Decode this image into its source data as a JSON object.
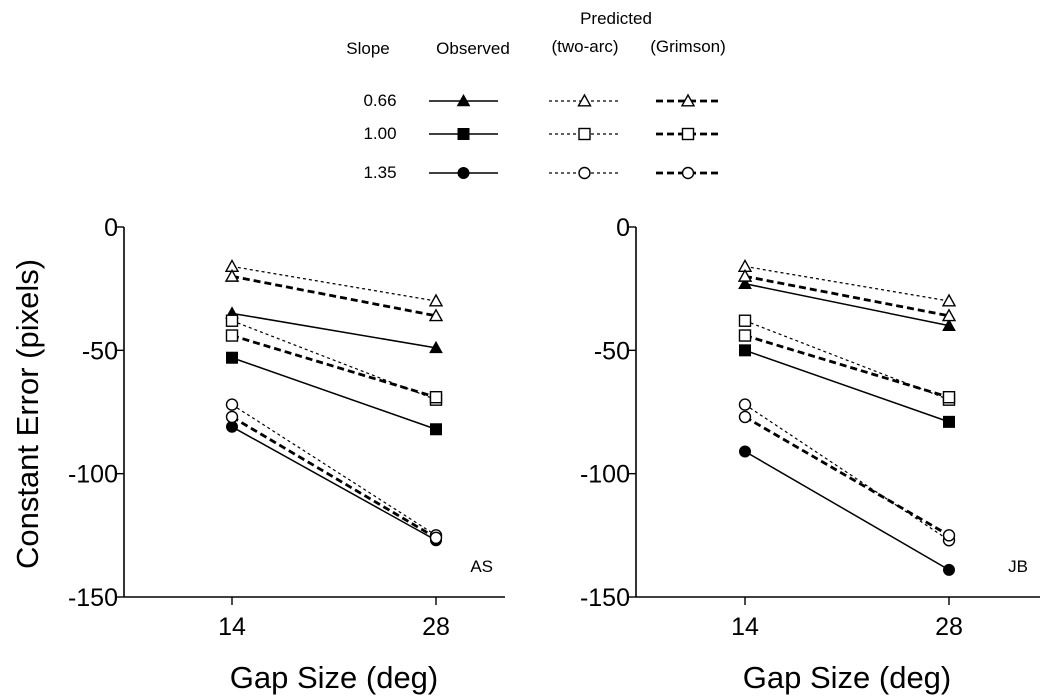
{
  "legend": {
    "headers": {
      "slope": "Slope",
      "observed": "Observed",
      "predicted": "Predicted",
      "two_arc": "(two-arc)",
      "grimson": "(Grimson)"
    },
    "rows": [
      {
        "slope": "0.66",
        "marker": "triangle"
      },
      {
        "slope": "1.00",
        "marker": "square"
      },
      {
        "slope": "1.35",
        "marker": "circle"
      }
    ]
  },
  "chart_data": [
    {
      "type": "line",
      "panel_label": "AS",
      "x": [
        14,
        28
      ],
      "x_tick_labels": [
        "14",
        "28"
      ],
      "y_ticks": [
        0,
        -50,
        -100,
        -150
      ],
      "y_tick_labels": [
        "0",
        "-50",
        "-100",
        "-150"
      ],
      "xlabel": "Gap Size (deg)",
      "ylabel": "Constant Error (pixels)",
      "ylim": [
        -150,
        0
      ],
      "series": [
        {
          "name": "0.66 Observed",
          "slope": "0.66",
          "kind": "observed",
          "marker": "triangle",
          "values": [
            -35,
            -49
          ]
        },
        {
          "name": "0.66 Predicted (two-arc)",
          "slope": "0.66",
          "kind": "two-arc",
          "marker": "triangle",
          "values": [
            -16,
            -30
          ]
        },
        {
          "name": "0.66 Predicted (Grimson)",
          "slope": "0.66",
          "kind": "grimson",
          "marker": "triangle",
          "values": [
            -20,
            -36
          ]
        },
        {
          "name": "1.00 Observed",
          "slope": "1.00",
          "kind": "observed",
          "marker": "square",
          "values": [
            -53,
            -82
          ]
        },
        {
          "name": "1.00 Predicted (two-arc)",
          "slope": "1.00",
          "kind": "two-arc",
          "marker": "square",
          "values": [
            -38,
            -70
          ]
        },
        {
          "name": "1.00 Predicted (Grimson)",
          "slope": "1.00",
          "kind": "grimson",
          "marker": "square",
          "values": [
            -44,
            -69
          ]
        },
        {
          "name": "1.35 Observed",
          "slope": "1.35",
          "kind": "observed",
          "marker": "circle",
          "values": [
            -81,
            -127
          ]
        },
        {
          "name": "1.35 Predicted (two-arc)",
          "slope": "1.35",
          "kind": "two-arc",
          "marker": "circle",
          "values": [
            -72,
            -125
          ]
        },
        {
          "name": "1.35 Predicted (Grimson)",
          "slope": "1.35",
          "kind": "grimson",
          "marker": "circle",
          "values": [
            -77,
            -126
          ]
        }
      ]
    },
    {
      "type": "line",
      "panel_label": "JB",
      "x": [
        14,
        28
      ],
      "x_tick_labels": [
        "14",
        "28"
      ],
      "y_ticks": [
        0,
        -50,
        -100,
        -150
      ],
      "y_tick_labels": [
        "0",
        "-50",
        "-100",
        "-150"
      ],
      "xlabel": "Gap Size (deg)",
      "ylabel": "",
      "ylim": [
        -150,
        0
      ],
      "series": [
        {
          "name": "0.66 Observed",
          "slope": "0.66",
          "kind": "observed",
          "marker": "triangle",
          "values": [
            -23,
            -40
          ]
        },
        {
          "name": "0.66 Predicted (two-arc)",
          "slope": "0.66",
          "kind": "two-arc",
          "marker": "triangle",
          "values": [
            -16,
            -30
          ]
        },
        {
          "name": "0.66 Predicted (Grimson)",
          "slope": "0.66",
          "kind": "grimson",
          "marker": "triangle",
          "values": [
            -20,
            -36
          ]
        },
        {
          "name": "1.00 Observed",
          "slope": "1.00",
          "kind": "observed",
          "marker": "square",
          "values": [
            -50,
            -79
          ]
        },
        {
          "name": "1.00 Predicted (two-arc)",
          "slope": "1.00",
          "kind": "two-arc",
          "marker": "square",
          "values": [
            -38,
            -70
          ]
        },
        {
          "name": "1.00 Predicted (Grimson)",
          "slope": "1.00",
          "kind": "grimson",
          "marker": "square",
          "values": [
            -44,
            -69
          ]
        },
        {
          "name": "1.35 Observed",
          "slope": "1.35",
          "kind": "observed",
          "marker": "circle",
          "values": [
            -91,
            -139
          ]
        },
        {
          "name": "1.35 Predicted (two-arc)",
          "slope": "1.35",
          "kind": "two-arc",
          "marker": "circle",
          "values": [
            -72,
            -127
          ]
        },
        {
          "name": "1.35 Predicted (Grimson)",
          "slope": "1.35",
          "kind": "grimson",
          "marker": "circle",
          "values": [
            -77,
            -125
          ]
        }
      ]
    }
  ]
}
